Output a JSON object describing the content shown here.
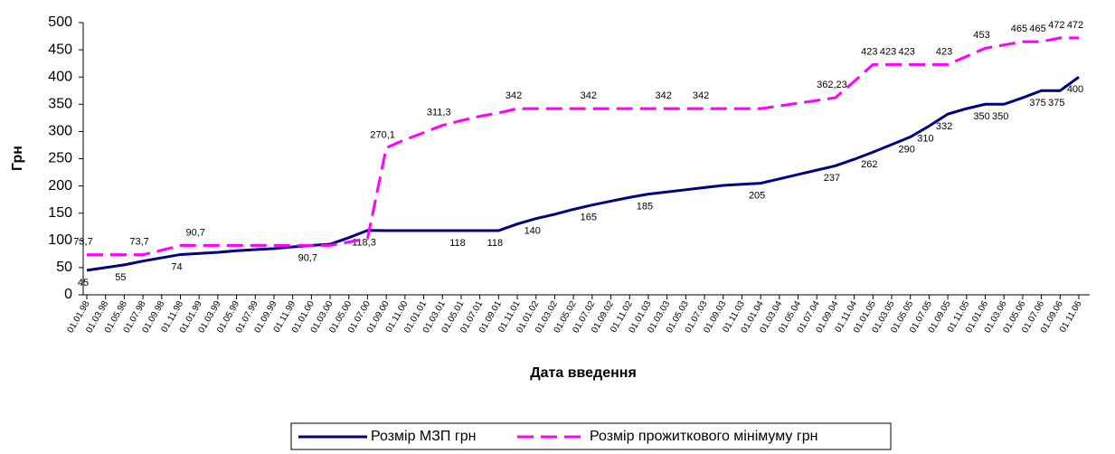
{
  "chart_data": {
    "type": "line",
    "x_label": "Дата введення",
    "y_label": "Грн",
    "categories": [
      "01.01.98",
      "01.03.98",
      "01.05.98",
      "01.07.98",
      "01.09.98",
      "01.11.98",
      "01.01.99",
      "01.03.99",
      "01.05.99",
      "01.07.99",
      "01.09.99",
      "01.11.99",
      "01.01.00",
      "01.03.00",
      "01.05.00",
      "01.07.00",
      "01.09.00",
      "01.11.00",
      "01.01.01",
      "01.03.01",
      "01.05.01",
      "01.07.01",
      "01.09.01",
      "01.11.01",
      "01.01.02",
      "01.03.02",
      "01.05.02",
      "01.07.02",
      "01.09.02",
      "01.11.02",
      "01.01.03",
      "01.03.03",
      "01.05.03",
      "01.07.03",
      "01.09.03",
      "01.11.03",
      "01.01.04",
      "01.03.04",
      "01.05.04",
      "01.07.04",
      "01.09.04",
      "01.11.04",
      "01.01.05",
      "01.03.05",
      "01.05.05",
      "01.07.05",
      "01.09.05",
      "01.11.05",
      "01.01.06",
      "01.03.06",
      "01.05.06",
      "01.07.06",
      "01.09.06",
      "01.11.06"
    ],
    "series": [
      {
        "name": "Розмір МЗП грн",
        "color": "#000080",
        "dashed": false,
        "values": [
          45,
          50,
          55,
          62,
          68,
          74,
          76,
          78,
          81,
          83,
          85,
          88,
          90.7,
          93,
          105,
          118.3,
          118,
          118,
          118,
          118,
          118,
          118,
          118,
          130,
          140,
          148,
          157,
          165,
          172,
          179,
          185,
          189,
          193,
          197,
          201,
          203,
          205,
          213,
          221,
          229,
          237,
          249,
          262,
          276,
          290,
          310,
          332,
          342,
          350,
          350,
          362,
          375,
          375,
          400
        ],
        "value_labels": [
          "45",
          null,
          "55",
          null,
          null,
          "74",
          null,
          null,
          null,
          null,
          null,
          null,
          "90,7",
          null,
          null,
          "118,3",
          null,
          null,
          null,
          null,
          "118",
          null,
          "118",
          null,
          "140",
          null,
          null,
          "165",
          null,
          null,
          "185",
          null,
          null,
          null,
          null,
          null,
          "205",
          null,
          null,
          null,
          "237",
          null,
          "262",
          null,
          "290",
          "310",
          "332",
          null,
          "350",
          "350",
          null,
          "375",
          "375",
          "400"
        ]
      },
      {
        "name": "Розмір прожиткового мінімуму грн",
        "color": "#ff00ff",
        "dashed": true,
        "values": [
          73.7,
          73.7,
          73.7,
          73.7,
          82,
          90.7,
          90.7,
          90.7,
          90.7,
          90.7,
          90.7,
          90.7,
          90.7,
          90.7,
          97,
          104,
          270.1,
          285,
          298,
          311.3,
          320,
          328,
          334,
          342,
          342,
          342,
          342,
          342,
          342,
          342,
          342,
          342,
          342,
          342,
          342,
          342,
          342,
          347,
          352,
          357,
          362.23,
          392,
          423,
          423,
          423,
          423,
          423,
          438,
          453,
          459,
          465,
          465,
          472,
          472
        ],
        "value_labels": [
          "73,7",
          null,
          null,
          "73,7",
          null,
          null,
          "90,7",
          null,
          null,
          null,
          null,
          null,
          null,
          null,
          null,
          null,
          "270,1",
          null,
          null,
          "311,3",
          null,
          null,
          null,
          "342",
          null,
          null,
          null,
          "342",
          null,
          null,
          null,
          "342",
          null,
          "342",
          null,
          null,
          null,
          null,
          null,
          null,
          "362,23",
          null,
          "423",
          "423",
          "423",
          null,
          "423",
          null,
          "453",
          null,
          "465",
          "465",
          "472",
          "472"
        ]
      }
    ],
    "ylim": [
      0,
      500
    ],
    "yticks": [
      0,
      50,
      100,
      150,
      200,
      250,
      300,
      350,
      400,
      450,
      500
    ],
    "grid": false,
    "legend": "bottom"
  }
}
